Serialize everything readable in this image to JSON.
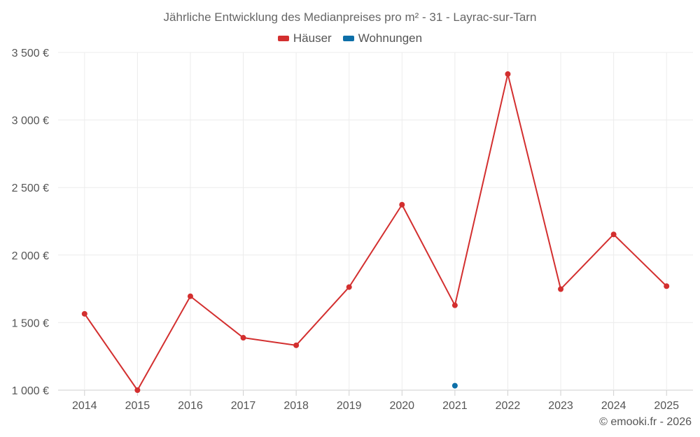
{
  "chart_data": {
    "type": "line",
    "title": "Jährliche Entwicklung des Medianpreises pro m² - 31 - Layrac-sur-Tarn",
    "xlabel": "",
    "ylabel": "",
    "categories": [
      "2014",
      "2015",
      "2016",
      "2017",
      "2018",
      "2019",
      "2020",
      "2021",
      "2022",
      "2023",
      "2024",
      "2025"
    ],
    "series": [
      {
        "name": "Häuser",
        "color": "#d32f2f",
        "values": [
          1565,
          1000,
          1695,
          1388,
          1332,
          1763,
          2373,
          1628,
          3340,
          1748,
          2153,
          1770
        ]
      },
      {
        "name": "Wohnungen",
        "color": "#0d6fa8",
        "values": [
          null,
          null,
          null,
          null,
          null,
          null,
          null,
          1033,
          null,
          null,
          null,
          null
        ]
      }
    ],
    "ylim": [
      1000,
      3500
    ],
    "yticks": [
      1000,
      1500,
      2000,
      2500,
      3000,
      3500
    ],
    "ytick_labels": [
      "1 000 €",
      "1 500 €",
      "2 000 €",
      "2 500 €",
      "3 000 €",
      "3 500 €"
    ],
    "grid": true,
    "legend_position": "top-center"
  },
  "credit": "© emooki.fr - 2026"
}
